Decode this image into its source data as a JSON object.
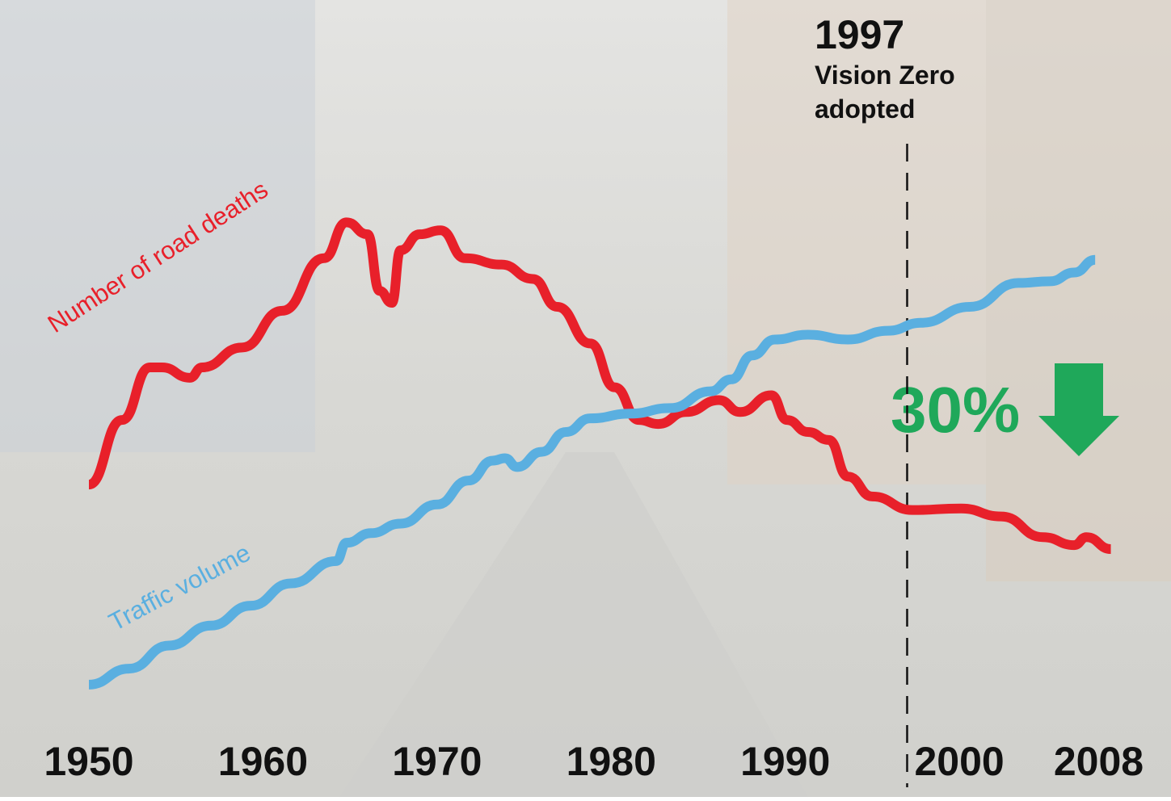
{
  "chart_data": {
    "type": "line",
    "xlim": [
      1950,
      2009
    ],
    "xticks": [
      1950,
      1960,
      1970,
      1980,
      1990,
      2000,
      2008
    ],
    "ylim": [
      0,
      100
    ],
    "series": [
      {
        "name": "Number of road deaths",
        "color": "#e8202a",
        "x": [
          1950.0,
          1951.9,
          1953.5,
          1954.2,
          1955.8,
          1956.5,
          1958.8,
          1961.1,
          1963.5,
          1964.8,
          1966.0,
          1966.7,
          1967.4,
          1967.9,
          1969.0,
          1970.2,
          1971.6,
          1973.7,
          1975.5,
          1976.9,
          1978.8,
          1980.2,
          1981.6,
          1982.7,
          1984.3,
          1986.2,
          1987.4,
          1989.2,
          1990.1,
          1991.3,
          1992.5,
          1993.6,
          1995.0,
          1997.3,
          2000.1,
          2002.4,
          2004.8,
          2006.6,
          2007.3,
          2008.7
        ],
        "values": [
          39.2,
          47.3,
          53.9,
          53.9,
          52.6,
          53.9,
          56.4,
          61.0,
          67.6,
          72.1,
          70.6,
          63.5,
          62.0,
          68.6,
          70.6,
          71.1,
          67.6,
          66.8,
          65.0,
          61.5,
          56.9,
          51.4,
          47.3,
          46.8,
          48.3,
          49.8,
          48.3,
          50.4,
          47.3,
          45.8,
          44.8,
          40.2,
          37.7,
          36.0,
          36.2,
          35.2,
          32.6,
          31.6,
          32.6,
          31.1
        ]
      },
      {
        "name": "Traffic volume",
        "color": "#5aafe0",
        "x": [
          1950.0,
          1952.3,
          1954.6,
          1957.0,
          1959.3,
          1961.6,
          1964.2,
          1964.8,
          1966.2,
          1967.9,
          1970.0,
          1971.8,
          1973.2,
          1973.9,
          1974.6,
          1976.0,
          1977.4,
          1978.8,
          1981.1,
          1983.4,
          1985.7,
          1986.9,
          1988.1,
          1989.4,
          1991.3,
          1993.6,
          1995.9,
          1997.8,
          2000.6,
          2003.4,
          2005.2,
          2006.6,
          2007.8
        ],
        "values": [
          14.1,
          16.1,
          19.0,
          21.5,
          24.0,
          26.8,
          29.6,
          31.9,
          33.1,
          34.3,
          36.7,
          39.7,
          42.2,
          42.5,
          41.4,
          43.3,
          45.8,
          47.5,
          48.1,
          48.8,
          50.9,
          52.4,
          55.4,
          57.4,
          58.0,
          57.4,
          58.5,
          59.5,
          61.5,
          64.5,
          64.7,
          65.8,
          67.4
        ]
      }
    ],
    "event": {
      "year": 1997,
      "label_lines": [
        "Vision Zero",
        "adopted"
      ]
    },
    "change": {
      "value": 30,
      "label": "30%",
      "color": "#1fa85a"
    }
  }
}
